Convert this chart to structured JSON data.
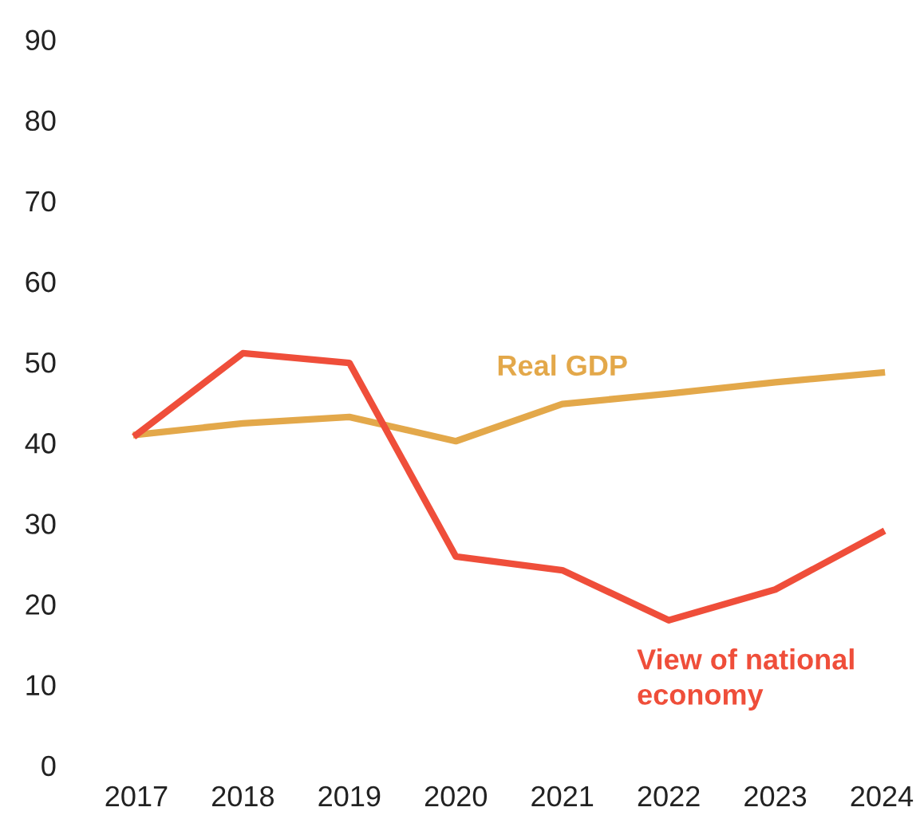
{
  "chart_data": {
    "type": "line",
    "categories": [
      "2017",
      "2018",
      "2019",
      "2020",
      "2021",
      "2022",
      "2023",
      "2024"
    ],
    "series": [
      {
        "name": "Real GDP",
        "color": "#e3a84a",
        "values": [
          41,
          42.4,
          43.2,
          40.2,
          44.8,
          46.1,
          47.5,
          48.7
        ]
      },
      {
        "name": "View of national economy",
        "color": "#ef4e3a",
        "values": [
          41,
          51.1,
          49.9,
          25.9,
          24.2,
          18,
          21.8,
          28.9
        ]
      }
    ],
    "ylim": [
      0,
      90
    ],
    "yticks": [
      0,
      10,
      20,
      30,
      40,
      50,
      60,
      70,
      80,
      90
    ],
    "grid": false,
    "legend": false,
    "marker": "none",
    "line_style": "solid"
  }
}
